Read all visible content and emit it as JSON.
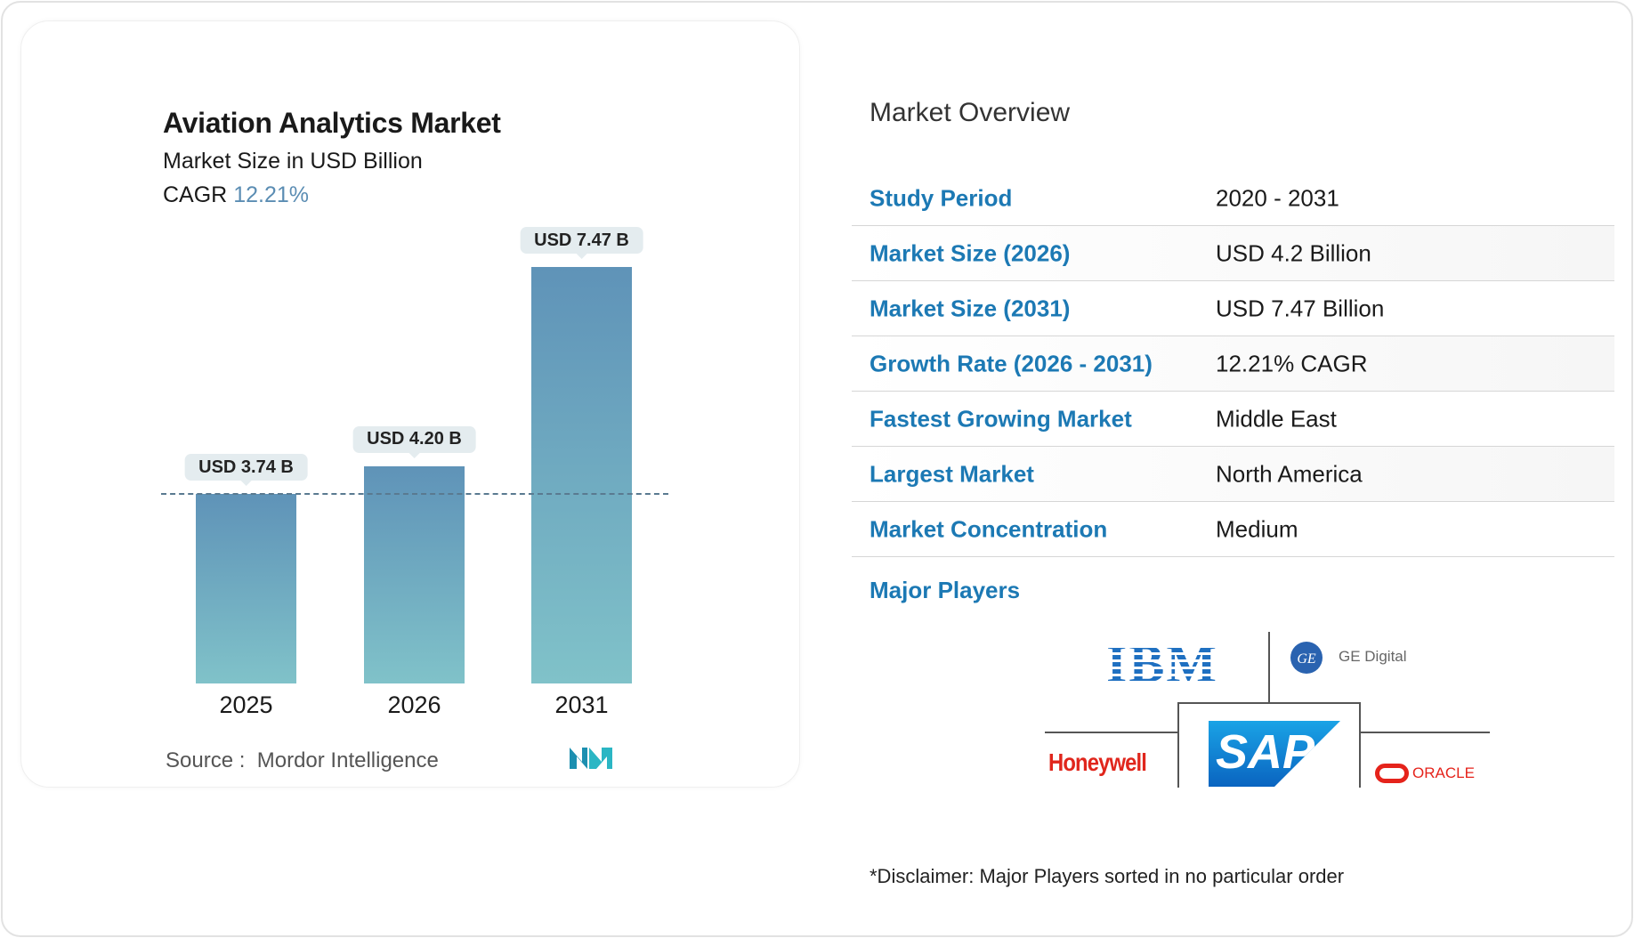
{
  "chart_data": {
    "type": "bar",
    "title": "Aviation Analytics Market",
    "subtitle": "Market Size in USD Billion",
    "cagr_label": "CAGR",
    "cagr_value": "12.21%",
    "categories": [
      "2025",
      "2026",
      "2031"
    ],
    "values": [
      3.74,
      4.2,
      7.47
    ],
    "data_labels": [
      "USD 3.74 B",
      "USD 4.20 B",
      "USD 7.47 B"
    ],
    "reference_line": "dashed at 2025 value",
    "colors": {
      "bar_top": "#5f93b8",
      "bar_bottom": "#80c2c9",
      "cagr": "#5b8db3"
    },
    "source_label": "Source :",
    "source": "Mordor Intelligence"
  },
  "overview": {
    "title": "Market Overview",
    "rows": [
      {
        "label": "Study Period",
        "value": "2020 - 2031"
      },
      {
        "label": "Market Size (2026)",
        "value": "USD 4.2 Billion"
      },
      {
        "label": "Market Size (2031)",
        "value": "USD 7.47 Billion"
      },
      {
        "label": "Growth Rate (2026 - 2031)",
        "value": "12.21% CAGR"
      },
      {
        "label": "Fastest Growing Market",
        "value": "Middle East"
      },
      {
        "label": "Largest Market",
        "value": "North America"
      },
      {
        "label": "Market Concentration",
        "value": "Medium"
      }
    ],
    "major_players_label": "Major Players",
    "players": [
      "IBM",
      "GE Digital",
      "Honeywell",
      "SAP",
      "ORACLE"
    ],
    "label_color": "#1c79b4",
    "disclaimer": "*Disclaimer: Major Players sorted in no particular order"
  }
}
